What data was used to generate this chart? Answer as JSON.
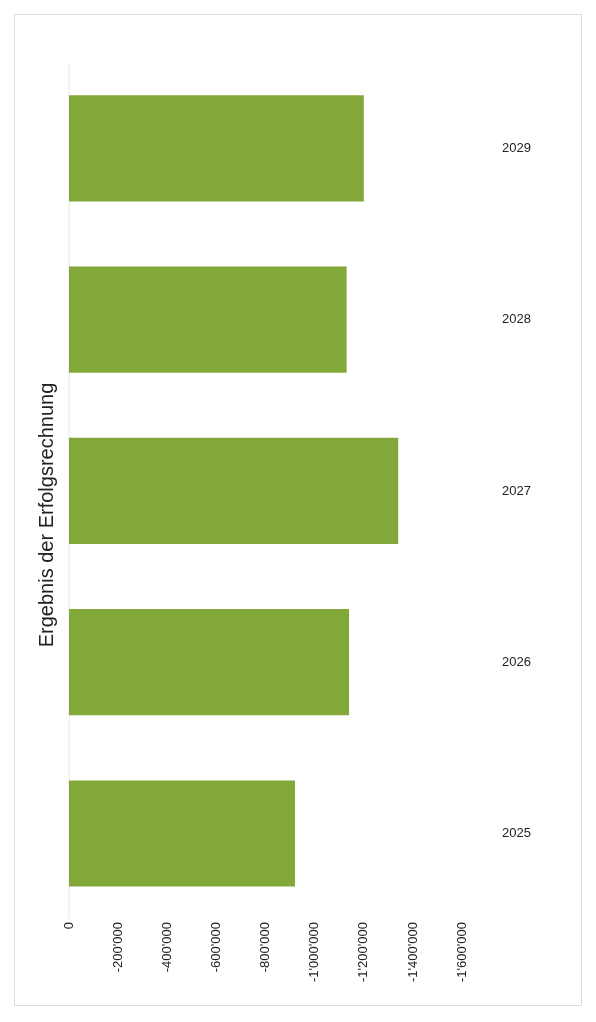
{
  "chart_data": {
    "type": "bar",
    "orientation": "horizontal",
    "title": "Ergebnis der Erfolgsrechnung",
    "categories": [
      "2029",
      "2028",
      "2027",
      "2026",
      "2025"
    ],
    "values": [
      -1200000,
      -1130000,
      -1340000,
      -1140000,
      -920000
    ],
    "color": "#82a83a",
    "xlim": [
      0,
      -1600000
    ],
    "xticks": [
      0,
      {
        "value": -200000,
        "label": "-200'000"
      },
      {
        "value": -400000,
        "label": "-400'000"
      },
      {
        "value": -600000,
        "label": "-600'000"
      },
      {
        "value": -800000,
        "label": "-800'000"
      },
      {
        "value": -1000000,
        "label": "-1'000'000"
      },
      {
        "value": -1200000,
        "label": "-1'200'000"
      },
      {
        "value": -1400000,
        "label": "-1'400'000"
      },
      {
        "value": -1600000,
        "label": "-1'600'000"
      }
    ],
    "grid": false,
    "legend": false
  }
}
